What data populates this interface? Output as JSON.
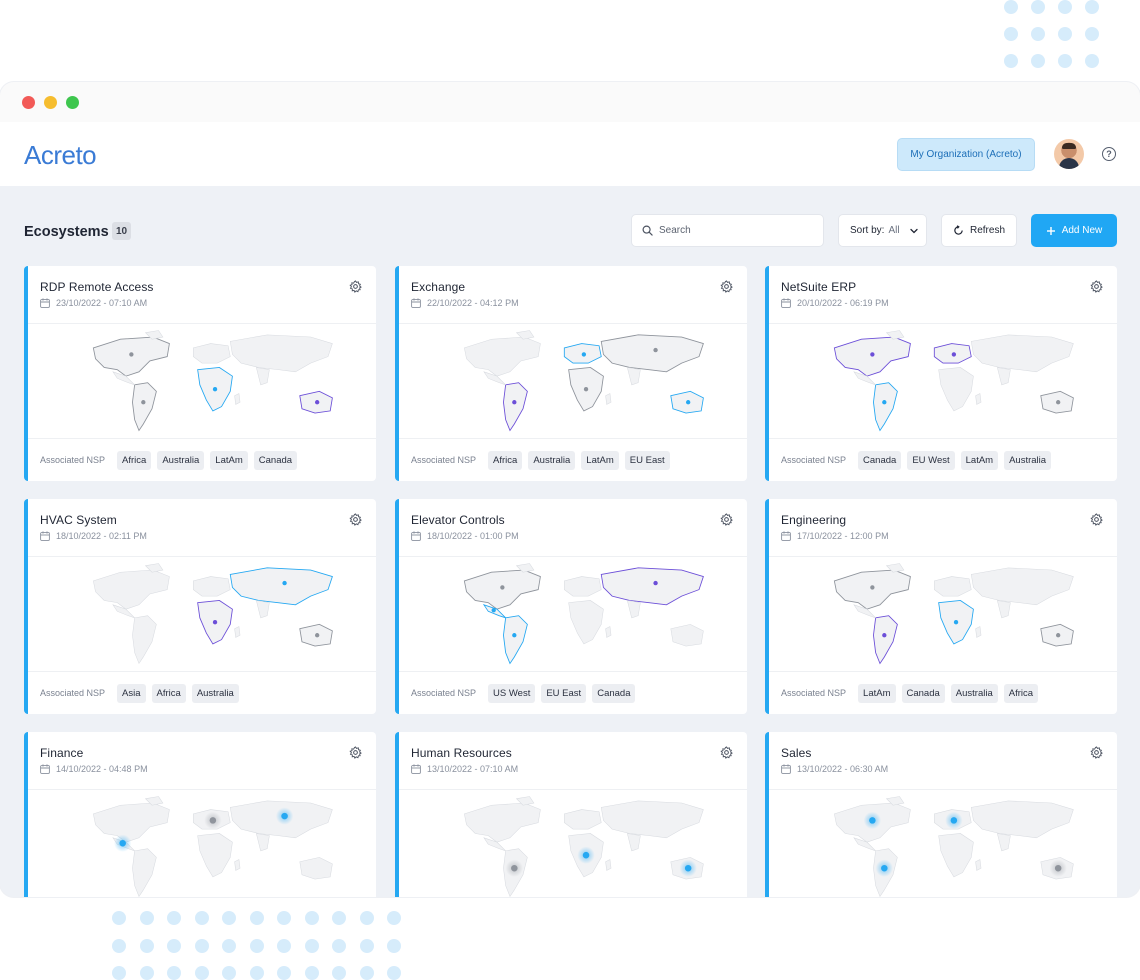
{
  "window": {
    "title": ""
  },
  "app": {
    "logo_text": "Acreto",
    "organization_button": "My Organization (Acreto)",
    "help_icon": "question-circle-icon",
    "avatar": "user-avatar"
  },
  "toolbar": {
    "title": "Ecosystems",
    "count": "10",
    "search_placeholder": "Search",
    "sort_label": "Sort by:",
    "sort_value": "All",
    "refresh_label": "Refresh",
    "add_label": "Add New"
  },
  "colors": {
    "accent": "#20a7f4",
    "purple": "#6c4fd8",
    "gray": "#9aa0a8",
    "background": "#eef1f6"
  },
  "nsp_label": "Associated NSP",
  "cards": [
    {
      "title": "RDP Remote Access",
      "date": "23/10/2022 - 07:10 AM",
      "nsp": [
        "Africa",
        "Australia",
        "LatAm",
        "Canada"
      ]
    },
    {
      "title": "Exchange",
      "date": "22/10/2022 - 04:12 PM",
      "nsp": [
        "Africa",
        "Australia",
        "LatAm",
        "EU East"
      ]
    },
    {
      "title": "NetSuite ERP",
      "date": "20/10/2022 - 06:19 PM",
      "nsp": [
        "Canada",
        "EU West",
        "LatAm",
        "Australia"
      ]
    },
    {
      "title": "HVAC System",
      "date": "18/10/2022 - 02:11 PM",
      "nsp": [
        "Asia",
        "Africa",
        "Australia"
      ]
    },
    {
      "title": "Elevator Controls",
      "date": "18/10/2022 - 01:00 PM",
      "nsp": [
        "US West",
        "EU East",
        "Canada"
      ]
    },
    {
      "title": "Engineering",
      "date": "17/10/2022 - 12:00 PM",
      "nsp": [
        "LatAm",
        "Canada",
        "Australia",
        "Africa"
      ]
    },
    {
      "title": "Finance",
      "date": "14/10/2022 - 04:48 PM",
      "nsp": []
    },
    {
      "title": "Human Resources",
      "date": "13/10/2022 - 07:10 AM",
      "nsp": []
    },
    {
      "title": "Sales",
      "date": "13/10/2022 - 06:30 AM",
      "nsp": []
    }
  ]
}
